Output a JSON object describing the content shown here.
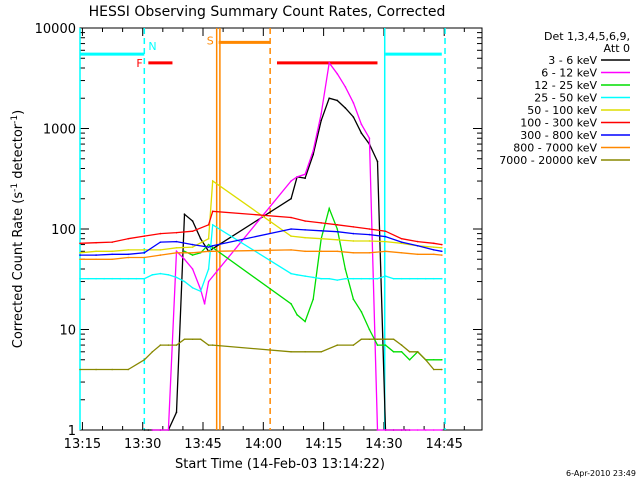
{
  "chart_data": {
    "type": "line",
    "title": "HESSI Observing Summary Count Rates, Corrected",
    "xlabel": "Start Time (14-Feb-03 13:14:22)",
    "ylabel": "Corrected Count Rate (s",
    "ylabel_sup1": "-1",
    "ylabel_mid": " detector",
    "ylabel_sup2": "-1",
    "ylabel_end": ")",
    "y_scale": "log",
    "ylim": [
      1,
      10000
    ],
    "xlim_minutes": [
      0,
      100
    ],
    "x_tick_labels": [
      "13:15",
      "13:30",
      "13:45",
      "14:00",
      "14:15",
      "14:30",
      "14:45"
    ],
    "y_tick_labels": [
      "1",
      "10",
      "100",
      "1000",
      "10000"
    ],
    "legend_header": [
      "Det 1,3,4,5,6,9,",
      "Att 0"
    ],
    "legend_placement": "outside-right",
    "stamp": "6-Apr-2010 23:49",
    "series": [
      {
        "name": "3 - 6 keV",
        "color": "#000000",
        "x": [
          16,
          17,
          18,
          20,
          22,
          24,
          26,
          28,
          30,
          32,
          52.5,
          54,
          56,
          58,
          60,
          62,
          64,
          66,
          68,
          70,
          72,
          74,
          76,
          78,
          80,
          81,
          82
        ],
        "y": [
          1,
          1,
          1,
          1,
          1,
          1.5,
          140,
          120,
          80,
          60,
          200,
          330,
          320,
          550,
          1200,
          2000,
          1900,
          1600,
          1300,
          900,
          700,
          470,
          1,
          1,
          1,
          1,
          1
        ]
      },
      {
        "name": "6 - 12 keV",
        "color": "#ff00ff",
        "x": [
          18,
          20,
          22,
          24,
          26,
          28,
          30,
          31,
          32,
          52.5,
          54,
          56,
          58,
          60,
          62,
          64,
          66,
          68,
          70,
          72,
          74,
          76,
          78,
          80,
          82,
          84,
          86,
          88,
          90
        ],
        "y": [
          1,
          1,
          1,
          60,
          50,
          40,
          25,
          18,
          30,
          300,
          330,
          350,
          600,
          1400,
          4500,
          3500,
          2600,
          1800,
          1100,
          800,
          1,
          1,
          1,
          1,
          1,
          1,
          1,
          1,
          1
        ]
      },
      {
        "name": "12 - 25 keV",
        "color": "#00dd00",
        "x": [
          26,
          28,
          30,
          32,
          52.5,
          54,
          56,
          58,
          60,
          62,
          64,
          66,
          68,
          70,
          72,
          74,
          76,
          78,
          80,
          82,
          84,
          86,
          88,
          90
        ],
        "y": [
          60,
          55,
          58,
          70,
          18,
          14,
          12,
          20,
          80,
          160,
          100,
          40,
          20,
          15,
          10,
          7,
          7,
          6,
          6,
          5,
          6,
          5,
          5,
          5
        ]
      },
      {
        "name": "25 - 50 keV",
        "color": "#00ffff",
        "x": [
          0,
          2,
          4,
          6,
          8,
          10,
          12,
          14,
          16,
          18,
          20,
          22,
          24,
          26,
          28,
          30,
          32,
          33,
          52.5,
          54,
          56,
          58,
          60,
          62,
          64,
          66,
          68,
          70,
          72,
          74,
          76,
          78,
          80,
          82,
          84,
          86,
          88,
          90
        ],
        "y": [
          32,
          32,
          32,
          32,
          32,
          32,
          32,
          32,
          32,
          35,
          36,
          35,
          33,
          30,
          26,
          24,
          40,
          110,
          36,
          35,
          34,
          33,
          32,
          32,
          31,
          32,
          32,
          32,
          32,
          32,
          34,
          32,
          32,
          32,
          32,
          32,
          32,
          32
        ]
      },
      {
        "name": "50 - 100 keV",
        "color": "#dddd00",
        "x": [
          0,
          4,
          8,
          12,
          16,
          20,
          24,
          28,
          32,
          33,
          52.5,
          56,
          60,
          64,
          68,
          72,
          76,
          80,
          84,
          88,
          90
        ],
        "y": [
          58,
          60,
          60,
          62,
          62,
          62,
          65,
          66,
          80,
          300,
          85,
          82,
          80,
          78,
          76,
          76,
          75,
          72,
          68,
          66,
          65
        ]
      },
      {
        "name": "100 - 300 keV",
        "color": "#ff0000",
        "x": [
          0,
          4,
          8,
          12,
          16,
          20,
          24,
          28,
          32,
          33,
          52.5,
          56,
          60,
          64,
          68,
          72,
          76,
          80,
          84,
          88,
          90
        ],
        "y": [
          72,
          73,
          74,
          80,
          85,
          90,
          92,
          95,
          110,
          150,
          130,
          120,
          115,
          110,
          105,
          100,
          95,
          80,
          75,
          72,
          70
        ]
      },
      {
        "name": "300 - 800 keV",
        "color": "#0000ff",
        "x": [
          0,
          4,
          8,
          12,
          16,
          20,
          24,
          28,
          32,
          33,
          52.5,
          56,
          60,
          64,
          68,
          72,
          76,
          80,
          84,
          88,
          90
        ],
        "y": [
          55,
          55,
          56,
          56,
          58,
          74,
          75,
          70,
          66,
          68,
          100,
          98,
          96,
          94,
          90,
          88,
          84,
          74,
          68,
          62,
          60
        ]
      },
      {
        "name": "800 - 7000 keV",
        "color": "#ff8800",
        "x": [
          0,
          4,
          8,
          12,
          16,
          20,
          24,
          28,
          32,
          33,
          52.5,
          56,
          60,
          64,
          68,
          72,
          76,
          80,
          84,
          88,
          90
        ],
        "y": [
          50,
          50,
          50,
          52,
          52,
          55,
          58,
          58,
          60,
          60,
          62,
          60,
          60,
          60,
          58,
          58,
          60,
          58,
          56,
          56,
          55
        ]
      },
      {
        "name": "7000 - 20000 keV",
        "color": "#888800",
        "x": [
          0,
          4,
          8,
          12,
          16,
          18,
          20,
          22,
          24,
          26,
          28,
          30,
          32,
          33,
          52.5,
          56,
          60,
          64,
          68,
          70,
          72,
          74,
          76,
          78,
          80,
          82,
          84,
          86,
          88,
          90
        ],
        "y": [
          4,
          4,
          4,
          4,
          5,
          6,
          7,
          7,
          7,
          8,
          8,
          8,
          7,
          7,
          6,
          6,
          6,
          7,
          7,
          8,
          8,
          8,
          8,
          8,
          7,
          6,
          6,
          5,
          4,
          4
        ]
      }
    ],
    "state_bars": [
      {
        "label": "N",
        "color": "#00ffff",
        "segments": [
          [
            0,
            16
          ],
          [
            76,
            90
          ]
        ],
        "y": 5500
      },
      {
        "label": "F",
        "color": "#ff0000",
        "segments": [
          [
            17,
            23
          ],
          [
            49,
            74
          ]
        ],
        "y": 4500
      },
      {
        "label": "S",
        "color": "#ff8800",
        "segments": [
          [
            34.5,
            47.3
          ]
        ],
        "y": 7200
      }
    ],
    "vertical_lines": [
      {
        "x": 0,
        "color": "#00ffff",
        "dashed": false
      },
      {
        "x": 16,
        "color": "#00ffff",
        "dashed": true
      },
      {
        "x": 34,
        "color": "#ff8800",
        "dashed": false
      },
      {
        "x": 34.8,
        "color": "#ff8800",
        "dashed": false
      },
      {
        "x": 47.3,
        "color": "#ff8800",
        "dashed": true
      },
      {
        "x": 75.8,
        "color": "#00ffff",
        "dashed": false
      },
      {
        "x": 90.8,
        "color": "#00ffff",
        "dashed": true
      }
    ]
  }
}
